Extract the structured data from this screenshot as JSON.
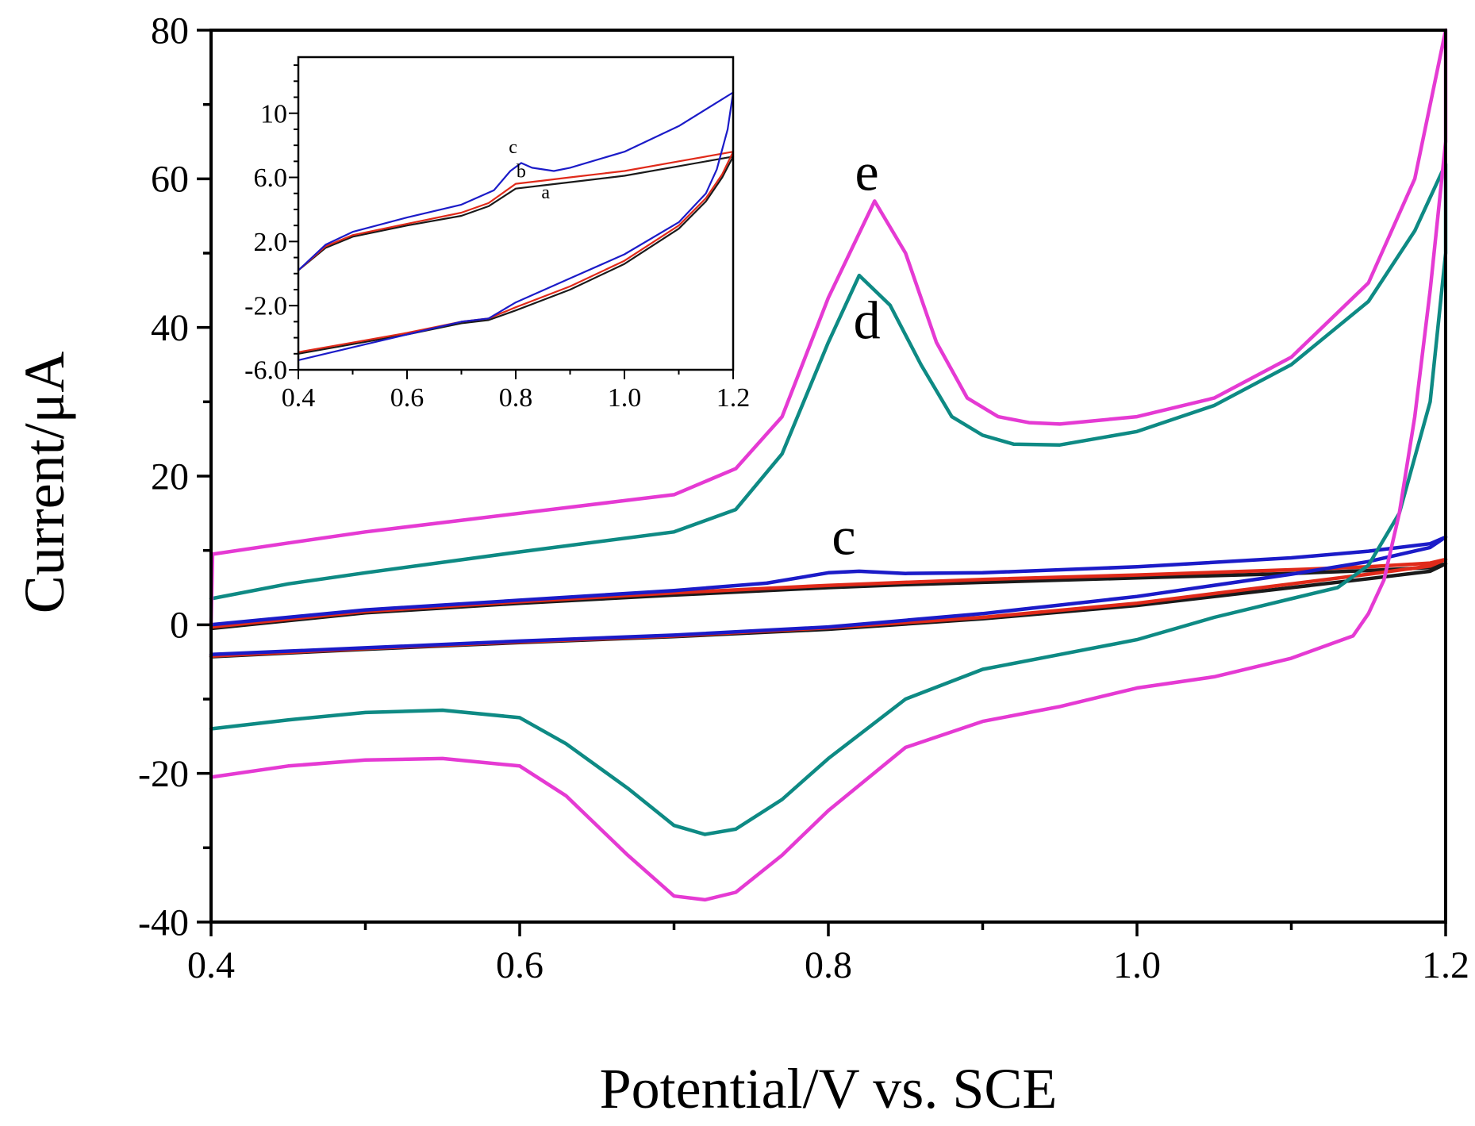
{
  "chart_data": [
    {
      "id": "main",
      "type": "line",
      "xlabel": "Potential/V vs. SCE",
      "ylabel": "Current/μA",
      "xlim": [
        0.4,
        1.2
      ],
      "ylim": [
        -40,
        80
      ],
      "xticks": [
        0.4,
        0.6,
        0.8,
        1.0,
        1.2
      ],
      "xtick_labels": [
        "0.4",
        "0.6",
        "0.8",
        "1.0",
        "1.2"
      ],
      "yticks": [
        -40,
        -20,
        0,
        20,
        40,
        60,
        80
      ],
      "ytick_labels": [
        "-40",
        "-20",
        "0",
        "20",
        "40",
        "60",
        "80"
      ],
      "grid": false,
      "series": [
        {
          "name": "a",
          "color": "#1a1a1a",
          "x": [
            0.4,
            0.5,
            0.6,
            0.7,
            0.8,
            0.85,
            0.9,
            1.0,
            1.1,
            1.15,
            1.19,
            1.2,
            1.19,
            1.15,
            1.1,
            1.0,
            0.9,
            0.8,
            0.7,
            0.6,
            0.5,
            0.4
          ],
          "y": [
            -0.5,
            1.6,
            2.9,
            4.0,
            5.0,
            5.4,
            5.7,
            6.3,
            6.9,
            7.3,
            7.7,
            8.2,
            7.2,
            6.2,
            5.0,
            2.6,
            0.8,
            -0.6,
            -1.6,
            -2.4,
            -3.3,
            -4.3
          ]
        },
        {
          "name": "b",
          "color": "#e02a1a",
          "x": [
            0.4,
            0.5,
            0.6,
            0.7,
            0.8,
            0.85,
            0.9,
            1.0,
            1.1,
            1.15,
            1.19,
            1.2,
            1.19,
            1.15,
            1.1,
            1.0,
            0.9,
            0.8,
            0.7,
            0.6,
            0.5,
            0.4
          ],
          "y": [
            -0.3,
            1.8,
            3.1,
            4.3,
            5.3,
            5.7,
            6.1,
            6.7,
            7.4,
            7.8,
            8.3,
            8.8,
            7.9,
            6.8,
            5.5,
            2.9,
            1.0,
            -0.4,
            -1.5,
            -2.3,
            -3.2,
            -4.2
          ]
        },
        {
          "name": "c",
          "color": "#1b1bc8",
          "x": [
            0.4,
            0.5,
            0.6,
            0.7,
            0.76,
            0.8,
            0.82,
            0.85,
            0.9,
            1.0,
            1.1,
            1.15,
            1.19,
            1.2,
            1.19,
            1.15,
            1.1,
            1.0,
            0.9,
            0.8,
            0.7,
            0.6,
            0.5,
            0.4
          ],
          "y": [
            0.0,
            2.0,
            3.3,
            4.6,
            5.6,
            7.0,
            7.2,
            6.9,
            7.0,
            7.8,
            9.0,
            9.9,
            10.9,
            11.8,
            10.4,
            8.5,
            6.8,
            3.8,
            1.5,
            -0.3,
            -1.4,
            -2.2,
            -3.1,
            -4.0
          ]
        },
        {
          "name": "d",
          "color": "#0e8a84",
          "x": [
            0.4,
            0.45,
            0.5,
            0.6,
            0.7,
            0.74,
            0.77,
            0.8,
            0.82,
            0.84,
            0.86,
            0.88,
            0.9,
            0.92,
            0.95,
            1.0,
            1.05,
            1.1,
            1.15,
            1.18,
            1.2,
            1.2,
            1.19,
            1.17,
            1.15,
            1.13,
            1.1,
            1.05,
            1.0,
            0.95,
            0.9,
            0.85,
            0.8,
            0.77,
            0.74,
            0.72,
            0.7,
            0.67,
            0.63,
            0.6,
            0.55,
            0.5,
            0.45,
            0.4
          ],
          "y": [
            3.5,
            5.5,
            7.0,
            9.8,
            12.5,
            15.5,
            23.0,
            38.0,
            47.0,
            43.0,
            35.0,
            28.0,
            25.5,
            24.3,
            24.2,
            26.0,
            29.5,
            35.0,
            43.5,
            53.0,
            62.0,
            50.0,
            30.0,
            15.0,
            8.0,
            5.0,
            3.5,
            1.0,
            -2.0,
            -4.0,
            -6.0,
            -10.0,
            -18.0,
            -23.5,
            -27.5,
            -28.2,
            -27.0,
            -22.0,
            -16.0,
            -12.5,
            -11.5,
            -11.8,
            -12.8,
            -14.0
          ]
        },
        {
          "name": "e",
          "color": "#e53ad3",
          "x": [
            0.4,
            0.401,
            0.45,
            0.5,
            0.6,
            0.7,
            0.74,
            0.77,
            0.8,
            0.83,
            0.85,
            0.87,
            0.89,
            0.91,
            0.93,
            0.95,
            1.0,
            1.05,
            1.1,
            1.15,
            1.18,
            1.2,
            1.2,
            1.19,
            1.18,
            1.17,
            1.16,
            1.15,
            1.14,
            1.1,
            1.05,
            1.0,
            0.95,
            0.9,
            0.85,
            0.8,
            0.77,
            0.74,
            0.72,
            0.7,
            0.67,
            0.63,
            0.6,
            0.55,
            0.5,
            0.45,
            0.4
          ],
          "y": [
            0.0,
            9.5,
            11.0,
            12.5,
            15.0,
            17.5,
            21.0,
            28.0,
            44.0,
            57.0,
            50.0,
            38.0,
            30.5,
            28.0,
            27.2,
            27.0,
            28.0,
            30.5,
            36.0,
            46.0,
            60.0,
            80.0,
            65.0,
            45.0,
            28.0,
            15.0,
            6.0,
            1.5,
            -1.5,
            -4.5,
            -7.0,
            -8.5,
            -11.0,
            -13.0,
            -16.5,
            -25.0,
            -31.0,
            -36.0,
            -37.0,
            -36.5,
            -31.0,
            -23.0,
            -19.0,
            -18.0,
            -18.2,
            -19.0,
            -20.5
          ]
        }
      ],
      "annotations": [
        {
          "text": "e",
          "x": 0.825,
          "y": 58.5
        },
        {
          "text": "d",
          "x": 0.825,
          "y": 38.5
        },
        {
          "text": "c",
          "x": 0.81,
          "y": 9.5
        }
      ]
    },
    {
      "id": "inset",
      "type": "line",
      "xlabel": "",
      "ylabel": "",
      "xlim": [
        0.4,
        1.2
      ],
      "ylim": [
        -6.0,
        13.5
      ],
      "xticks": [
        0.4,
        0.6,
        0.8,
        1.0,
        1.2
      ],
      "xtick_labels": [
        "0.4",
        "0.6",
        "0.8",
        "1.0",
        "1.2"
      ],
      "yticks": [
        -6.0,
        -2.0,
        2.0,
        6.0,
        10.0
      ],
      "ytick_labels": [
        "-6.0",
        "-2.0",
        "2.0",
        "6.0",
        "10"
      ],
      "grid": false,
      "series": [
        {
          "name": "a",
          "color": "#1a1a1a",
          "x": [
            0.4,
            0.45,
            0.5,
            0.6,
            0.7,
            0.75,
            0.8,
            0.85,
            0.9,
            1.0,
            1.1,
            1.2,
            1.18,
            1.15,
            1.1,
            1.0,
            0.9,
            0.8,
            0.75,
            0.7,
            0.6,
            0.5,
            0.4
          ],
          "y": [
            0.2,
            1.6,
            2.3,
            3.0,
            3.6,
            4.2,
            5.3,
            5.5,
            5.7,
            6.1,
            6.7,
            7.3,
            6.0,
            4.5,
            2.8,
            0.6,
            -1.0,
            -2.3,
            -2.9,
            -3.1,
            -3.8,
            -4.4,
            -5.0
          ]
        },
        {
          "name": "b",
          "color": "#e02a1a",
          "x": [
            0.4,
            0.45,
            0.5,
            0.6,
            0.7,
            0.75,
            0.8,
            0.85,
            0.9,
            1.0,
            1.1,
            1.2,
            1.18,
            1.15,
            1.1,
            1.0,
            0.9,
            0.8,
            0.75,
            0.7,
            0.6,
            0.5,
            0.4
          ],
          "y": [
            0.2,
            1.7,
            2.4,
            3.1,
            3.8,
            4.4,
            5.6,
            5.8,
            6.0,
            6.4,
            7.0,
            7.6,
            6.2,
            4.7,
            3.0,
            0.8,
            -0.8,
            -2.1,
            -2.8,
            -3.0,
            -3.7,
            -4.3,
            -4.9
          ]
        },
        {
          "name": "c",
          "color": "#1b1bc8",
          "x": [
            0.4,
            0.45,
            0.5,
            0.6,
            0.7,
            0.76,
            0.79,
            0.81,
            0.83,
            0.87,
            0.9,
            1.0,
            1.1,
            1.2,
            1.19,
            1.17,
            1.15,
            1.1,
            1.0,
            0.9,
            0.8,
            0.75,
            0.7,
            0.6,
            0.5,
            0.4
          ],
          "y": [
            0.2,
            1.8,
            2.6,
            3.5,
            4.3,
            5.2,
            6.4,
            6.9,
            6.6,
            6.4,
            6.6,
            7.6,
            9.2,
            11.3,
            9.0,
            6.5,
            5.0,
            3.2,
            1.2,
            -0.3,
            -1.8,
            -2.8,
            -3.0,
            -3.8,
            -4.6,
            -5.4
          ]
        }
      ],
      "annotations": [
        {
          "text": "c",
          "x": 0.795,
          "y": 7.5
        },
        {
          "text": "b",
          "x": 0.81,
          "y": 6.0
        },
        {
          "text": "a",
          "x": 0.855,
          "y": 4.7
        }
      ]
    }
  ]
}
